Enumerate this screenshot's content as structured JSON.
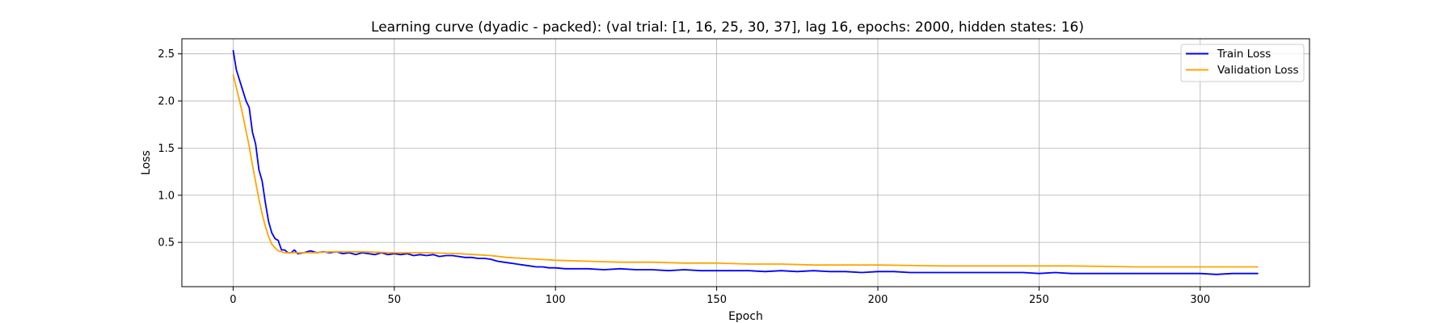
{
  "chart_data": {
    "type": "line",
    "title": "Learning curve (dyadic - packed): (val trial: [1, 16, 25, 30, 37], lag 16, epochs: 2000, hidden states: 16)",
    "xlabel": "Epoch",
    "ylabel": "Loss",
    "xlim": [
      -15.9,
      333.9
    ],
    "ylim": [
      0.03,
      2.66
    ],
    "xticks": [
      0,
      50,
      100,
      150,
      200,
      250,
      300
    ],
    "yticks": [
      0.5,
      1.0,
      1.5,
      2.0,
      2.5
    ],
    "xtick_labels": [
      "0",
      "50",
      "100",
      "150",
      "200",
      "250",
      "300"
    ],
    "ytick_labels": [
      "0.5",
      "1.0",
      "1.5",
      "2.0",
      "2.5"
    ],
    "grid": true,
    "legend_position": "top-right",
    "series": [
      {
        "name": "Train Loss",
        "color": "#0000ff",
        "points": [
          [
            0,
            2.54
          ],
          [
            1,
            2.33
          ],
          [
            2,
            2.22
          ],
          [
            3,
            2.11
          ],
          [
            4,
            2.0
          ],
          [
            5,
            1.93
          ],
          [
            6,
            1.67
          ],
          [
            7,
            1.54
          ],
          [
            8,
            1.27
          ],
          [
            9,
            1.15
          ],
          [
            10,
            0.92
          ],
          [
            11,
            0.72
          ],
          [
            12,
            0.6
          ],
          [
            13,
            0.54
          ],
          [
            14,
            0.52
          ],
          [
            15,
            0.42
          ],
          [
            16,
            0.42
          ],
          [
            17,
            0.39
          ],
          [
            18,
            0.39
          ],
          [
            19,
            0.42
          ],
          [
            20,
            0.38
          ],
          [
            22,
            0.39
          ],
          [
            24,
            0.41
          ],
          [
            26,
            0.39
          ],
          [
            28,
            0.4
          ],
          [
            30,
            0.39
          ],
          [
            32,
            0.4
          ],
          [
            34,
            0.38
          ],
          [
            36,
            0.39
          ],
          [
            38,
            0.37
          ],
          [
            40,
            0.39
          ],
          [
            42,
            0.38
          ],
          [
            44,
            0.37
          ],
          [
            46,
            0.39
          ],
          [
            48,
            0.37
          ],
          [
            50,
            0.38
          ],
          [
            52,
            0.37
          ],
          [
            54,
            0.38
          ],
          [
            56,
            0.36
          ],
          [
            58,
            0.37
          ],
          [
            60,
            0.36
          ],
          [
            62,
            0.37
          ],
          [
            64,
            0.35
          ],
          [
            66,
            0.36
          ],
          [
            68,
            0.36
          ],
          [
            70,
            0.35
          ],
          [
            72,
            0.34
          ],
          [
            74,
            0.34
          ],
          [
            76,
            0.33
          ],
          [
            78,
            0.33
          ],
          [
            80,
            0.32
          ],
          [
            82,
            0.3
          ],
          [
            84,
            0.29
          ],
          [
            86,
            0.28
          ],
          [
            88,
            0.27
          ],
          [
            90,
            0.26
          ],
          [
            92,
            0.25
          ],
          [
            94,
            0.24
          ],
          [
            96,
            0.24
          ],
          [
            98,
            0.23
          ],
          [
            100,
            0.23
          ],
          [
            103,
            0.22
          ],
          [
            106,
            0.22
          ],
          [
            110,
            0.22
          ],
          [
            115,
            0.21
          ],
          [
            120,
            0.22
          ],
          [
            125,
            0.21
          ],
          [
            130,
            0.21
          ],
          [
            135,
            0.2
          ],
          [
            140,
            0.21
          ],
          [
            145,
            0.2
          ],
          [
            150,
            0.2
          ],
          [
            155,
            0.2
          ],
          [
            160,
            0.2
          ],
          [
            165,
            0.19
          ],
          [
            170,
            0.2
          ],
          [
            175,
            0.19
          ],
          [
            180,
            0.2
          ],
          [
            185,
            0.19
          ],
          [
            190,
            0.19
          ],
          [
            195,
            0.18
          ],
          [
            200,
            0.19
          ],
          [
            205,
            0.19
          ],
          [
            210,
            0.18
          ],
          [
            215,
            0.18
          ],
          [
            220,
            0.18
          ],
          [
            225,
            0.18
          ],
          [
            230,
            0.18
          ],
          [
            235,
            0.18
          ],
          [
            240,
            0.18
          ],
          [
            245,
            0.18
          ],
          [
            250,
            0.17
          ],
          [
            255,
            0.18
          ],
          [
            260,
            0.17
          ],
          [
            265,
            0.17
          ],
          [
            270,
            0.17
          ],
          [
            275,
            0.17
          ],
          [
            280,
            0.17
          ],
          [
            285,
            0.17
          ],
          [
            290,
            0.17
          ],
          [
            295,
            0.17
          ],
          [
            300,
            0.17
          ],
          [
            305,
            0.16
          ],
          [
            310,
            0.17
          ],
          [
            315,
            0.17
          ],
          [
            318,
            0.17
          ]
        ]
      },
      {
        "name": "Validation Loss",
        "color": "#ffa500",
        "points": [
          [
            0,
            2.28
          ],
          [
            1,
            2.14
          ],
          [
            2,
            2.0
          ],
          [
            3,
            1.85
          ],
          [
            4,
            1.68
          ],
          [
            5,
            1.52
          ],
          [
            6,
            1.32
          ],
          [
            7,
            1.14
          ],
          [
            8,
            0.96
          ],
          [
            9,
            0.8
          ],
          [
            10,
            0.67
          ],
          [
            11,
            0.56
          ],
          [
            12,
            0.48
          ],
          [
            13,
            0.44
          ],
          [
            14,
            0.41
          ],
          [
            15,
            0.4
          ],
          [
            16,
            0.39
          ],
          [
            18,
            0.39
          ],
          [
            20,
            0.39
          ],
          [
            25,
            0.39
          ],
          [
            30,
            0.4
          ],
          [
            40,
            0.4
          ],
          [
            50,
            0.39
          ],
          [
            60,
            0.39
          ],
          [
            70,
            0.38
          ],
          [
            75,
            0.37
          ],
          [
            80,
            0.36
          ],
          [
            85,
            0.34
          ],
          [
            90,
            0.33
          ],
          [
            95,
            0.32
          ],
          [
            100,
            0.31
          ],
          [
            110,
            0.3
          ],
          [
            120,
            0.29
          ],
          [
            130,
            0.29
          ],
          [
            140,
            0.28
          ],
          [
            150,
            0.28
          ],
          [
            160,
            0.27
          ],
          [
            170,
            0.27
          ],
          [
            180,
            0.26
          ],
          [
            190,
            0.26
          ],
          [
            200,
            0.26
          ],
          [
            220,
            0.25
          ],
          [
            240,
            0.25
          ],
          [
            260,
            0.25
          ],
          [
            280,
            0.24
          ],
          [
            300,
            0.24
          ],
          [
            318,
            0.24
          ]
        ]
      }
    ]
  }
}
